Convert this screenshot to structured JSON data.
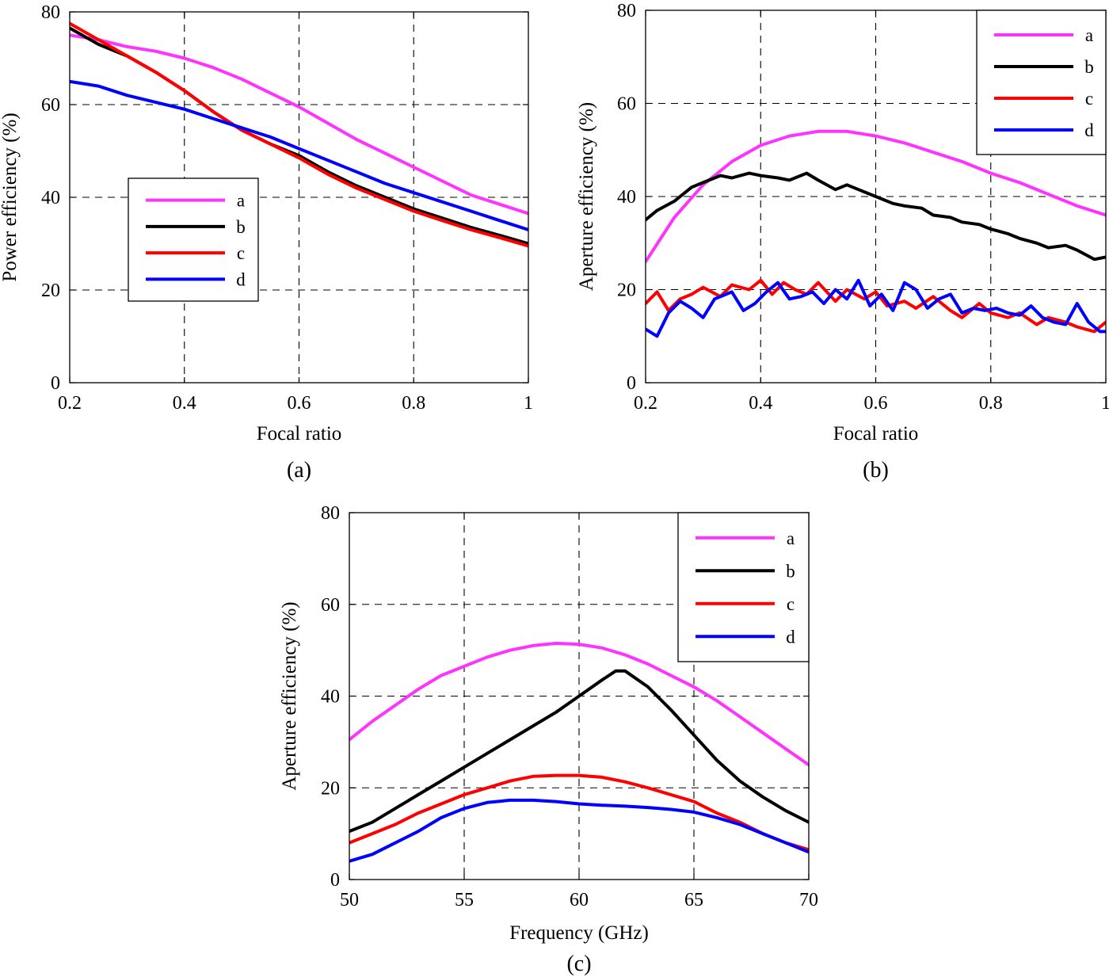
{
  "chart_data": [
    {
      "type": "line",
      "caption": "(a)",
      "xlabel": "Focal ratio",
      "ylabel": "Power efficiency (%)",
      "xlim": [
        0.2,
        1
      ],
      "ylim": [
        0,
        80
      ],
      "xticks": [
        0.2,
        0.4,
        0.6,
        0.8,
        1
      ],
      "xtick_labels": [
        "0.2",
        "0.4",
        "0.6",
        "0.8",
        "1"
      ],
      "yticks": [
        0,
        20,
        40,
        60,
        80
      ],
      "ytick_labels": [
        "0",
        "20",
        "40",
        "60",
        "80"
      ],
      "grid": true,
      "legend_position": "center-left",
      "series": [
        {
          "name": "a",
          "color": "#ff33ff",
          "x": [
            0.2,
            0.25,
            0.3,
            0.35,
            0.4,
            0.45,
            0.5,
            0.55,
            0.6,
            0.65,
            0.7,
            0.75,
            0.8,
            0.85,
            0.9,
            0.95,
            1.0
          ],
          "y": [
            75,
            74,
            72.5,
            71.5,
            70,
            68,
            65.5,
            62.5,
            59.5,
            56,
            52.5,
            49.5,
            46.5,
            43.5,
            40.5,
            38.5,
            36.5
          ]
        },
        {
          "name": "b",
          "color": "#000000",
          "x": [
            0.2,
            0.25,
            0.3,
            0.35,
            0.4,
            0.45,
            0.5,
            0.55,
            0.6,
            0.65,
            0.7,
            0.75,
            0.8,
            0.85,
            0.9,
            0.95,
            1.0
          ],
          "y": [
            76.5,
            73,
            70.5,
            67,
            63,
            58.5,
            54.5,
            51.5,
            49,
            45.5,
            42.5,
            40,
            37.5,
            35.5,
            33.5,
            31.8,
            30
          ]
        },
        {
          "name": "c",
          "color": "#ff0000",
          "x": [
            0.2,
            0.25,
            0.3,
            0.35,
            0.4,
            0.45,
            0.5,
            0.55,
            0.6,
            0.65,
            0.7,
            0.75,
            0.8,
            0.85,
            0.9,
            0.95,
            1.0
          ],
          "y": [
            77.5,
            74,
            70.5,
            67,
            63,
            58.5,
            54.5,
            51.5,
            48.5,
            45,
            42,
            39.5,
            37,
            35,
            33,
            31.3,
            29.5
          ]
        },
        {
          "name": "d",
          "color": "#0000ff",
          "x": [
            0.2,
            0.25,
            0.3,
            0.35,
            0.4,
            0.45,
            0.5,
            0.55,
            0.6,
            0.65,
            0.7,
            0.75,
            0.8,
            0.85,
            0.9,
            0.95,
            1.0
          ],
          "y": [
            65,
            64,
            62,
            60.5,
            59,
            57,
            55,
            53,
            50.5,
            48,
            45.5,
            43,
            41,
            39,
            37,
            35,
            33
          ]
        }
      ]
    },
    {
      "type": "line",
      "caption": "(b)",
      "xlabel": "Focal ratio",
      "ylabel": "Aperture efficiency (%)",
      "xlim": [
        0.2,
        1
      ],
      "ylim": [
        0,
        80
      ],
      "xticks": [
        0.2,
        0.4,
        0.6,
        0.8,
        1
      ],
      "xtick_labels": [
        "0.2",
        "0.4",
        "0.6",
        "0.8",
        "1"
      ],
      "yticks": [
        0,
        20,
        40,
        60,
        80
      ],
      "ytick_labels": [
        "0",
        "20",
        "40",
        "60",
        "80"
      ],
      "grid": true,
      "legend_position": "top-right",
      "series": [
        {
          "name": "a",
          "color": "#ff33ff",
          "x": [
            0.2,
            0.25,
            0.3,
            0.35,
            0.4,
            0.45,
            0.5,
            0.55,
            0.6,
            0.65,
            0.7,
            0.75,
            0.8,
            0.85,
            0.9,
            0.95,
            1.0
          ],
          "y": [
            26,
            35.5,
            42.5,
            47.5,
            51,
            53,
            54,
            54,
            53,
            51.5,
            49.5,
            47.5,
            45,
            43,
            40.5,
            38,
            36
          ]
        },
        {
          "name": "b",
          "color": "#000000",
          "x": [
            0.2,
            0.22,
            0.25,
            0.28,
            0.3,
            0.33,
            0.35,
            0.38,
            0.4,
            0.43,
            0.45,
            0.48,
            0.5,
            0.53,
            0.55,
            0.57,
            0.6,
            0.63,
            0.65,
            0.68,
            0.7,
            0.73,
            0.75,
            0.78,
            0.8,
            0.83,
            0.85,
            0.88,
            0.9,
            0.93,
            0.95,
            0.98,
            1.0
          ],
          "y": [
            35,
            37,
            39,
            42,
            43,
            44.5,
            44,
            45,
            44.5,
            44,
            43.5,
            45,
            43.5,
            41.5,
            42.5,
            41.5,
            40,
            38.5,
            38,
            37.5,
            36,
            35.5,
            34.5,
            34,
            33,
            32,
            31,
            30,
            29,
            29.5,
            28.5,
            26.5,
            27
          ]
        },
        {
          "name": "c",
          "color": "#ff0000",
          "x": [
            0.2,
            0.22,
            0.24,
            0.26,
            0.28,
            0.3,
            0.33,
            0.35,
            0.38,
            0.4,
            0.42,
            0.44,
            0.46,
            0.48,
            0.5,
            0.53,
            0.55,
            0.58,
            0.6,
            0.62,
            0.65,
            0.67,
            0.7,
            0.73,
            0.75,
            0.78,
            0.8,
            0.83,
            0.85,
            0.88,
            0.9,
            0.93,
            0.95,
            0.98,
            1.0
          ],
          "y": [
            17,
            19.5,
            15.5,
            18,
            19,
            20.5,
            18.5,
            21,
            20,
            22,
            19,
            21.5,
            20,
            19,
            21.5,
            17.5,
            20,
            18,
            19.5,
            16.5,
            17.5,
            16,
            18.5,
            15.5,
            14,
            17,
            15,
            14,
            15,
            12.5,
            14,
            13,
            12,
            11,
            13
          ]
        },
        {
          "name": "d",
          "color": "#0000ff",
          "x": [
            0.2,
            0.22,
            0.24,
            0.26,
            0.28,
            0.3,
            0.32,
            0.35,
            0.37,
            0.39,
            0.41,
            0.43,
            0.45,
            0.47,
            0.49,
            0.51,
            0.53,
            0.55,
            0.57,
            0.59,
            0.61,
            0.63,
            0.65,
            0.67,
            0.69,
            0.71,
            0.73,
            0.75,
            0.77,
            0.79,
            0.81,
            0.83,
            0.85,
            0.87,
            0.89,
            0.91,
            0.93,
            0.95,
            0.97,
            0.99,
            1.0
          ],
          "y": [
            11.5,
            10,
            15,
            17.5,
            16,
            14,
            18,
            19.5,
            15.5,
            17,
            19.5,
            21.5,
            18,
            18.5,
            19.5,
            17,
            20,
            18,
            22,
            16.5,
            19,
            15.5,
            21.5,
            20,
            16,
            18,
            19,
            15,
            16,
            15.5,
            16,
            15,
            14.5,
            16.5,
            14,
            13,
            12.5,
            17,
            13,
            11,
            11
          ]
        }
      ]
    },
    {
      "type": "line",
      "caption": "(c)",
      "xlabel": "Frequency (GHz)",
      "ylabel": "Aperture efficiency (%)",
      "xlim": [
        50,
        70
      ],
      "ylim": [
        0,
        80
      ],
      "xticks": [
        50,
        55,
        60,
        65,
        70
      ],
      "xtick_labels": [
        "50",
        "55",
        "60",
        "65",
        "70"
      ],
      "yticks": [
        0,
        20,
        40,
        60,
        80
      ],
      "ytick_labels": [
        "0",
        "20",
        "40",
        "60",
        "80"
      ],
      "grid": true,
      "legend_position": "top-right",
      "series": [
        {
          "name": "a",
          "color": "#ff33ff",
          "x": [
            50,
            51,
            52,
            53,
            54,
            55,
            56,
            57,
            58,
            59,
            60,
            61,
            62,
            63,
            64,
            65,
            66,
            67,
            68,
            69,
            70
          ],
          "y": [
            30.5,
            34.5,
            38,
            41.5,
            44.5,
            46.5,
            48.5,
            50,
            51,
            51.5,
            51.3,
            50.5,
            49,
            47,
            44.5,
            42,
            39,
            35.5,
            32,
            28.5,
            25
          ]
        },
        {
          "name": "b",
          "color": "#000000",
          "x": [
            50,
            51,
            52,
            53,
            54,
            55,
            56,
            57,
            58,
            59,
            60,
            61,
            61.6,
            62,
            63,
            64,
            65,
            66,
            67,
            68,
            69,
            70
          ],
          "y": [
            10.5,
            12.5,
            15.5,
            18.5,
            21.5,
            24.5,
            27.5,
            30.5,
            33.5,
            36.5,
            40,
            43.5,
            45.5,
            45.5,
            42,
            37,
            31.5,
            26,
            21.5,
            18,
            15,
            12.5
          ]
        },
        {
          "name": "c",
          "color": "#ff0000",
          "x": [
            50,
            51,
            52,
            53,
            54,
            55,
            56,
            57,
            58,
            59,
            60,
            61,
            62,
            63,
            64,
            65,
            66,
            67,
            68,
            69,
            70
          ],
          "y": [
            8,
            10,
            12,
            14.5,
            16.5,
            18.5,
            20,
            21.5,
            22.5,
            22.7,
            22.7,
            22.3,
            21.3,
            20,
            18.5,
            17,
            14.5,
            12.5,
            10,
            8,
            6.5
          ]
        },
        {
          "name": "d",
          "color": "#0000ff",
          "x": [
            50,
            51,
            52,
            53,
            54,
            55,
            56,
            57,
            58,
            59,
            60,
            61,
            62,
            63,
            64,
            65,
            66,
            67,
            68,
            69,
            70
          ],
          "y": [
            4,
            5.5,
            8,
            10.5,
            13.5,
            15.5,
            16.8,
            17.3,
            17.3,
            17,
            16.5,
            16.2,
            16,
            15.7,
            15.3,
            14.7,
            13.5,
            12,
            10,
            8,
            6
          ]
        }
      ]
    }
  ]
}
